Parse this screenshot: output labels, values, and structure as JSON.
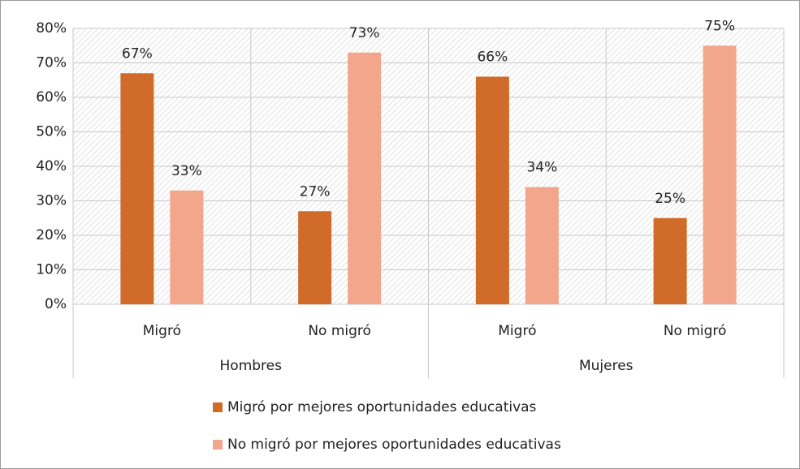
{
  "chart_data": {
    "type": "bar",
    "categories": [
      "Migró",
      "No migró",
      "Migró",
      "No migró"
    ],
    "groups": [
      "Hombres",
      "Mujeres"
    ],
    "series": [
      {
        "name": "Migró por mejores oportunidades educativas",
        "color": "#d06b2a",
        "values": [
          67,
          27,
          66,
          25
        ],
        "value_labels": [
          "67%",
          "27%",
          "66%",
          "25%"
        ]
      },
      {
        "name": "No migró por mejores oportunidades educativas",
        "color": "#f2a78c",
        "values": [
          33,
          73,
          34,
          75
        ],
        "value_labels": [
          "33%",
          "73%",
          "34%",
          "75%"
        ]
      }
    ],
    "ylim": [
      0,
      80
    ],
    "yticks": [
      {
        "value": 0,
        "label": "0%"
      },
      {
        "value": 10,
        "label": "10%"
      },
      {
        "value": 20,
        "label": "20%"
      },
      {
        "value": 30,
        "label": "30%"
      },
      {
        "value": 40,
        "label": "40%"
      },
      {
        "value": 50,
        "label": "50%"
      },
      {
        "value": 60,
        "label": "60%"
      },
      {
        "value": 70,
        "label": "70%"
      },
      {
        "value": 80,
        "label": "80%"
      }
    ],
    "grid": true,
    "legend": "bottom"
  }
}
